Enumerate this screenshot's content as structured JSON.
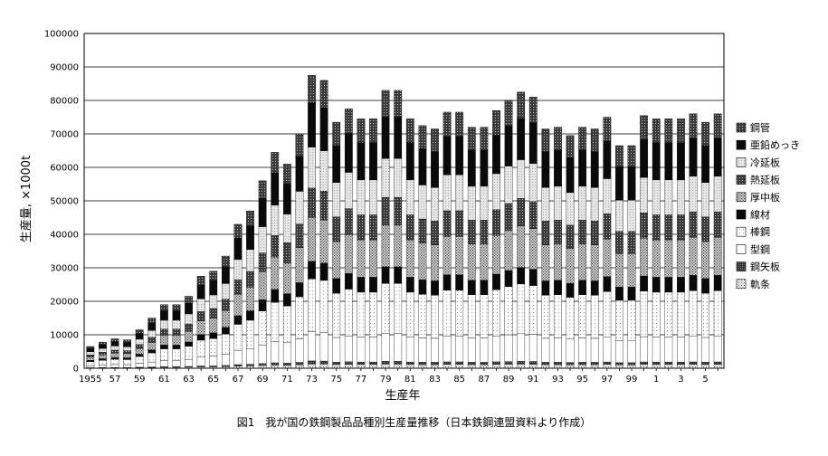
{
  "caption": "図1　我が国の鉄鋼製品品種別生産量推移（日本鉄鋼連盟資料より作成）",
  "chart_data": {
    "type": "bar",
    "stacked": true,
    "title": "",
    "xlabel": "生産年",
    "ylabel": "生産量, ×1000t",
    "ylim": [
      0,
      100000
    ],
    "yticks": [
      0,
      10000,
      20000,
      30000,
      40000,
      50000,
      60000,
      70000,
      80000,
      90000,
      100000
    ],
    "grid": "horizontal",
    "legend_position": "right",
    "categories": [
      "1955",
      "1956",
      "1957",
      "1958",
      "1959",
      "1960",
      "1961",
      "1962",
      "1963",
      "1964",
      "1965",
      "1966",
      "1967",
      "1968",
      "1969",
      "1970",
      "1971",
      "1972",
      "1973",
      "1974",
      "1975",
      "1976",
      "1977",
      "1978",
      "1979",
      "1980",
      "1981",
      "1982",
      "1983",
      "1984",
      "1985",
      "1986",
      "1987",
      "1988",
      "1989",
      "1990",
      "1991",
      "1992",
      "1993",
      "1994",
      "1995",
      "1996",
      "1997",
      "1998",
      "1999",
      "2000",
      "2001",
      "2002",
      "2003",
      "2004",
      "2005",
      "2006"
    ],
    "xtick_labels": [
      "1955",
      "",
      "57",
      "",
      "59",
      "",
      "61",
      "",
      "63",
      "",
      "65",
      "",
      "67",
      "",
      "69",
      "",
      "71",
      "",
      "73",
      "",
      "75",
      "",
      "77",
      "",
      "79",
      "",
      "81",
      "",
      "83",
      "",
      "85",
      "",
      "87",
      "",
      "89",
      "",
      "91",
      "",
      "93",
      "",
      "95",
      "",
      "97",
      "",
      "99",
      "",
      "1",
      "",
      "3",
      "",
      "5",
      ""
    ],
    "totals": [
      6500,
      7800,
      8800,
      8500,
      11500,
      15000,
      19000,
      19000,
      21500,
      27500,
      29000,
      33500,
      43000,
      47000,
      56000,
      64500,
      61000,
      70000,
      87500,
      86000,
      73500,
      77500,
      74500,
      74500,
      83000,
      83000,
      74500,
      72500,
      71500,
      76500,
      76500,
      72000,
      72000,
      77000,
      80000,
      82500,
      81000,
      71500,
      72000,
      69500,
      72000,
      71500,
      75000,
      66500,
      66500,
      75500,
      74500,
      74500,
      74500,
      76000,
      73500,
      76000
    ],
    "series": [
      {
        "name": "軌条",
        "pattern": "dots-fine",
        "share": 0.015
      },
      {
        "name": "鋼矢板",
        "pattern": "dark",
        "share": 0.01
      },
      {
        "name": "型鋼",
        "pattern": "white",
        "share": 0.1
      },
      {
        "name": "棒鋼",
        "pattern": "light-dots",
        "share": 0.18
      },
      {
        "name": "線材",
        "pattern": "black",
        "share": 0.06
      },
      {
        "name": "厚中板",
        "pattern": "dots-medium",
        "share": 0.15
      },
      {
        "name": "熱延板",
        "pattern": "dark-dots",
        "share": 0.1
      },
      {
        "name": "冷延板",
        "pattern": "light-gray",
        "share": 0.14
      },
      {
        "name": "亜鉛めっき",
        "pattern": "black",
        "share": 0.15
      },
      {
        "name": "鋼管",
        "pattern": "dark-dots",
        "share": 0.095
      }
    ]
  }
}
